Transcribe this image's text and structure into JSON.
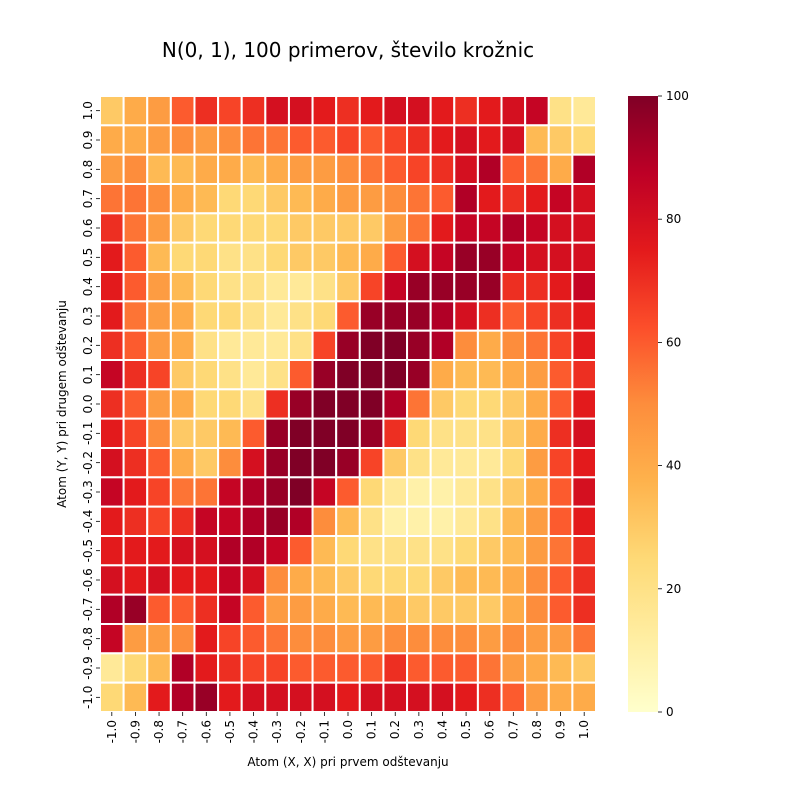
{
  "chart_data": {
    "type": "heatmap",
    "title": "N(0, 1), 100 primerov, število krožnic",
    "xlabel": "Atom (X, X) pri prvem odštevanju",
    "ylabel": "Atom (Y, Y) pri drugem odštevanju",
    "x_ticks": [
      "-1.0",
      "-0.9",
      "-0.8",
      "-0.7",
      "-0.6",
      "-0.5",
      "-0.4",
      "-0.3",
      "-0.2",
      "-0.1",
      "0.0",
      "0.1",
      "0.2",
      "0.3",
      "0.4",
      "0.5",
      "0.6",
      "0.7",
      "0.8",
      "0.9",
      "1.0"
    ],
    "y_ticks": [
      "1.0",
      "0.9",
      "0.8",
      "0.7",
      "0.6",
      "0.5",
      "0.4",
      "0.3",
      "0.2",
      "0.1",
      "0.0",
      "-0.1",
      "-0.2",
      "-0.3",
      "-0.4",
      "-0.5",
      "-0.6",
      "-0.7",
      "-0.8",
      "-0.9",
      "-1.0"
    ],
    "colorbar": {
      "min": 0,
      "max": 100,
      "ticks": [
        "0",
        "20",
        "40",
        "60",
        "80",
        "100"
      ],
      "colormap": "YlOrRd"
    },
    "grid_lines": true,
    "values": [
      [
        30,
        40,
        45,
        60,
        70,
        65,
        70,
        80,
        80,
        75,
        70,
        75,
        80,
        80,
        75,
        70,
        75,
        80,
        85,
        20,
        15
      ],
      [
        40,
        40,
        45,
        50,
        45,
        50,
        55,
        55,
        60,
        60,
        65,
        60,
        65,
        70,
        75,
        80,
        75,
        80,
        35,
        30,
        25
      ],
      [
        45,
        50,
        35,
        35,
        40,
        40,
        35,
        40,
        45,
        45,
        50,
        55,
        60,
        65,
        70,
        80,
        90,
        60,
        55,
        40,
        90
      ],
      [
        55,
        55,
        50,
        40,
        35,
        25,
        25,
        30,
        35,
        40,
        45,
        45,
        50,
        55,
        60,
        90,
        75,
        70,
        75,
        85,
        80
      ],
      [
        70,
        55,
        45,
        30,
        25,
        25,
        25,
        25,
        30,
        30,
        30,
        30,
        45,
        55,
        75,
        85,
        85,
        90,
        85,
        80,
        80
      ],
      [
        75,
        60,
        35,
        25,
        25,
        20,
        20,
        25,
        30,
        30,
        35,
        40,
        60,
        80,
        85,
        95,
        95,
        85,
        80,
        80,
        80
      ],
      [
        75,
        60,
        45,
        35,
        25,
        20,
        20,
        15,
        15,
        20,
        30,
        65,
        85,
        95,
        95,
        95,
        95,
        70,
        70,
        75,
        85
      ],
      [
        75,
        55,
        45,
        40,
        25,
        25,
        20,
        15,
        20,
        25,
        60,
        95,
        95,
        95,
        90,
        80,
        70,
        60,
        65,
        70,
        75
      ],
      [
        70,
        60,
        45,
        40,
        20,
        15,
        15,
        15,
        20,
        65,
        95,
        100,
        100,
        95,
        90,
        50,
        40,
        50,
        55,
        65,
        75
      ],
      [
        85,
        70,
        65,
        30,
        25,
        20,
        15,
        20,
        60,
        95,
        100,
        100,
        100,
        95,
        40,
        35,
        35,
        40,
        45,
        60,
        70
      ],
      [
        70,
        60,
        45,
        40,
        25,
        25,
        20,
        70,
        95,
        100,
        100,
        100,
        90,
        55,
        30,
        25,
        25,
        30,
        40,
        60,
        75
      ],
      [
        75,
        65,
        50,
        30,
        30,
        35,
        60,
        95,
        100,
        100,
        100,
        95,
        70,
        25,
        20,
        20,
        20,
        30,
        40,
        70,
        80
      ],
      [
        80,
        70,
        60,
        40,
        30,
        50,
        80,
        95,
        100,
        100,
        95,
        65,
        30,
        20,
        15,
        15,
        15,
        25,
        45,
        65,
        75
      ],
      [
        85,
        75,
        65,
        55,
        55,
        85,
        90,
        95,
        100,
        85,
        60,
        25,
        15,
        10,
        10,
        15,
        20,
        30,
        40,
        60,
        80
      ],
      [
        75,
        70,
        65,
        70,
        85,
        85,
        90,
        95,
        90,
        50,
        35,
        20,
        10,
        10,
        10,
        15,
        20,
        35,
        45,
        60,
        75
      ],
      [
        75,
        75,
        75,
        80,
        80,
        90,
        90,
        85,
        60,
        35,
        25,
        20,
        20,
        20,
        20,
        25,
        30,
        35,
        45,
        55,
        70
      ],
      [
        80,
        75,
        80,
        75,
        75,
        85,
        80,
        50,
        40,
        35,
        30,
        25,
        25,
        25,
        30,
        35,
        35,
        40,
        50,
        60,
        70
      ],
      [
        90,
        95,
        60,
        60,
        70,
        85,
        60,
        45,
        45,
        40,
        35,
        35,
        35,
        30,
        30,
        30,
        30,
        40,
        50,
        60,
        70
      ],
      [
        85,
        45,
        45,
        50,
        75,
        65,
        60,
        55,
        50,
        50,
        45,
        45,
        50,
        50,
        50,
        50,
        45,
        50,
        45,
        45,
        55
      ],
      [
        15,
        25,
        35,
        90,
        75,
        70,
        65,
        65,
        60,
        60,
        60,
        60,
        70,
        60,
        60,
        60,
        55,
        45,
        40,
        35,
        30
      ],
      [
        25,
        35,
        75,
        90,
        95,
        75,
        80,
        80,
        80,
        80,
        75,
        80,
        80,
        80,
        80,
        75,
        70,
        60,
        45,
        40,
        40
      ]
    ]
  }
}
